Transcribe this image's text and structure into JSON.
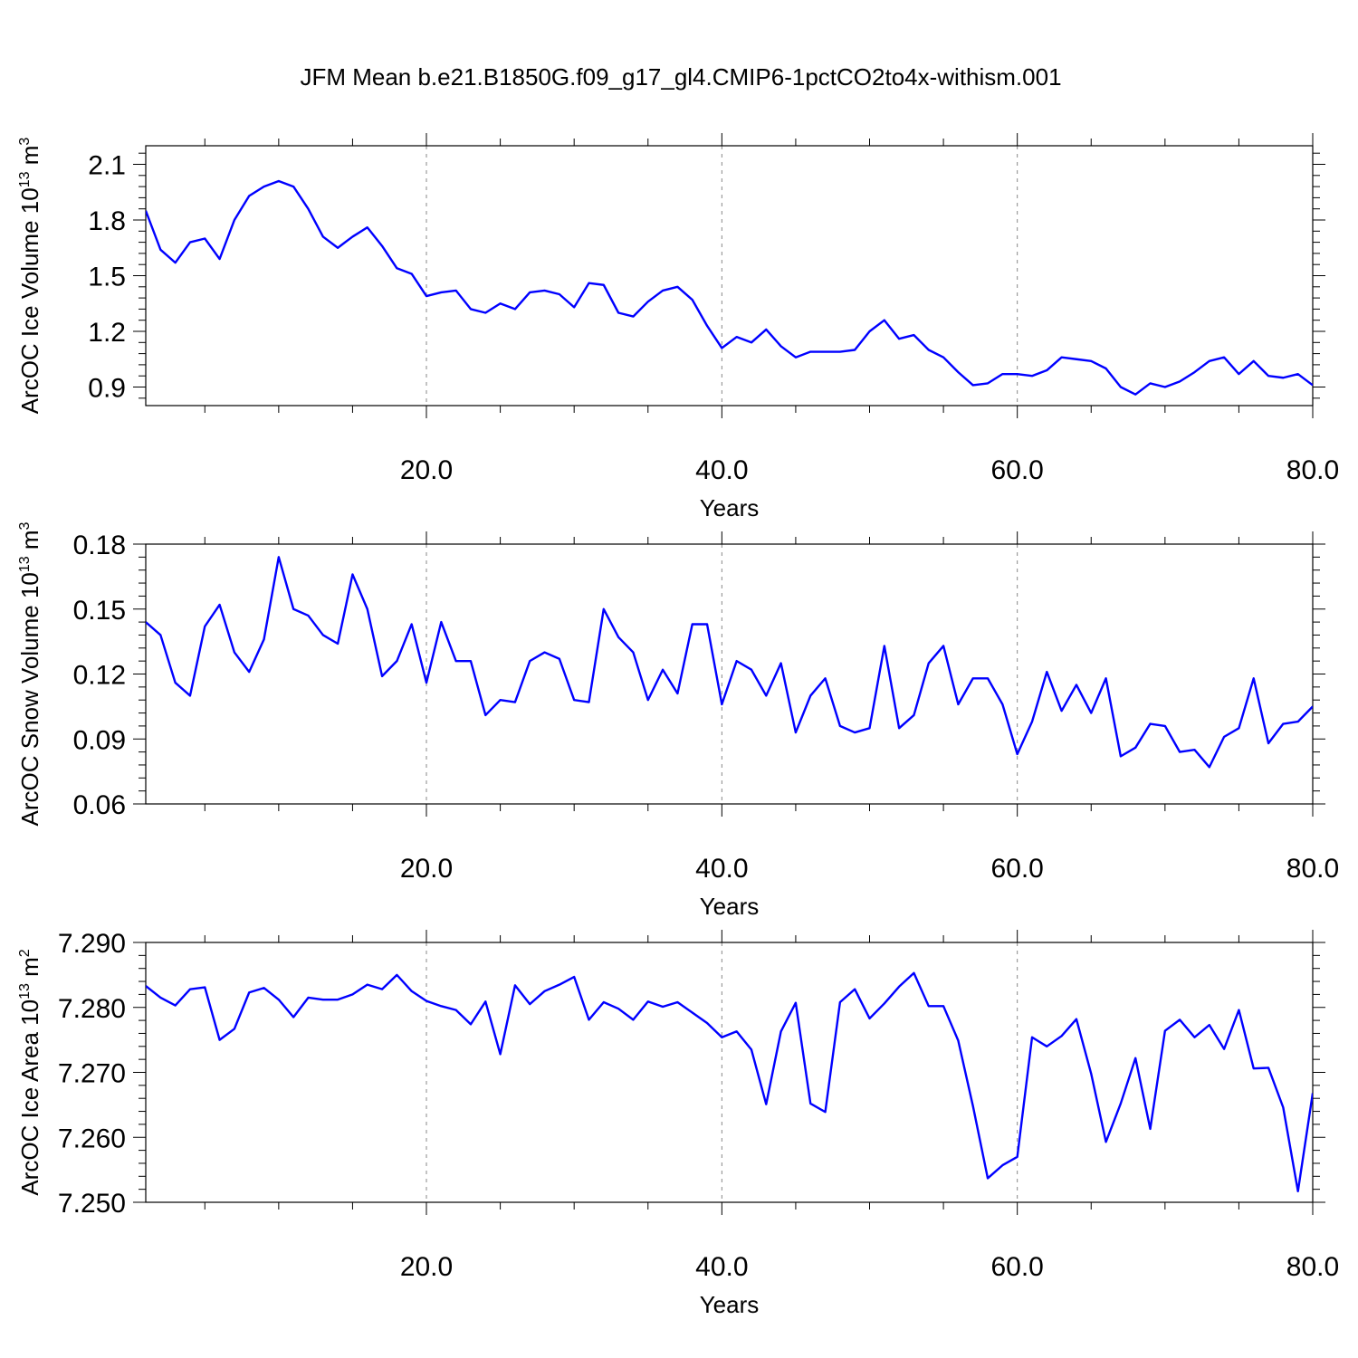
{
  "title": "JFM Mean b.e21.B1850G.f09_g17_gl4.CMIP6-1pctCO2to4x-withism.001",
  "colors": {
    "line": "#0000ff",
    "grid": "#888888",
    "axis": "#000000"
  },
  "chart_data": [
    {
      "type": "line",
      "xlabel": "Years",
      "ylabel": "ArcOC Ice Volume 10",
      "ylabel_sup": "13",
      "ylabel_unit": " m",
      "ylabel_unit_sup": "3",
      "xlim": [
        1,
        80
      ],
      "ylim": [
        0.8,
        2.2
      ],
      "x_ticks": [
        "20.0",
        "40.0",
        "60.0",
        "80.0"
      ],
      "y_ticks": [
        "0.9",
        "1.2",
        "1.5",
        "1.8",
        "2.1"
      ],
      "grid": "vertical dashed at x ticks",
      "x_start": 1,
      "values": [
        1.85,
        1.64,
        1.57,
        1.68,
        1.7,
        1.59,
        1.8,
        1.93,
        1.98,
        2.01,
        1.98,
        1.86,
        1.71,
        1.65,
        1.71,
        1.76,
        1.66,
        1.54,
        1.51,
        1.39,
        1.41,
        1.42,
        1.32,
        1.3,
        1.35,
        1.32,
        1.41,
        1.42,
        1.4,
        1.33,
        1.46,
        1.45,
        1.3,
        1.28,
        1.36,
        1.42,
        1.44,
        1.37,
        1.23,
        1.11,
        1.17,
        1.14,
        1.21,
        1.12,
        1.06,
        1.09,
        1.09,
        1.09,
        1.1,
        1.2,
        1.26,
        1.16,
        1.18,
        1.1,
        1.06,
        0.98,
        0.91,
        0.92,
        0.97,
        0.97,
        0.96,
        0.99,
        1.06,
        1.05,
        1.04,
        1.0,
        0.9,
        0.86,
        0.92,
        0.9,
        0.93,
        0.98,
        1.04,
        1.06,
        0.97,
        1.04,
        0.96,
        0.95,
        0.97,
        0.91
      ]
    },
    {
      "type": "line",
      "xlabel": "Years",
      "ylabel": "ArcOC Snow Volume 10",
      "ylabel_sup": "13",
      "ylabel_unit": " m",
      "ylabel_unit_sup": "3",
      "xlim": [
        1,
        80
      ],
      "ylim": [
        0.06,
        0.18
      ],
      "x_ticks": [
        "20.0",
        "40.0",
        "60.0",
        "80.0"
      ],
      "y_ticks": [
        "0.06",
        "0.09",
        "0.12",
        "0.15",
        "0.18"
      ],
      "grid": "vertical dashed at x ticks",
      "x_start": 1,
      "values": [
        0.144,
        0.138,
        0.116,
        0.11,
        0.142,
        0.152,
        0.13,
        0.121,
        0.136,
        0.174,
        0.15,
        0.147,
        0.138,
        0.134,
        0.166,
        0.15,
        0.119,
        0.126,
        0.143,
        0.116,
        0.144,
        0.126,
        0.126,
        0.101,
        0.108,
        0.107,
        0.126,
        0.13,
        0.127,
        0.108,
        0.107,
        0.15,
        0.137,
        0.13,
        0.108,
        0.122,
        0.111,
        0.143,
        0.143,
        0.106,
        0.126,
        0.122,
        0.11,
        0.125,
        0.093,
        0.11,
        0.118,
        0.096,
        0.093,
        0.095,
        0.133,
        0.095,
        0.101,
        0.125,
        0.133,
        0.106,
        0.118,
        0.118,
        0.106,
        0.083,
        0.098,
        0.121,
        0.103,
        0.115,
        0.102,
        0.118,
        0.082,
        0.086,
        0.097,
        0.096,
        0.084,
        0.085,
        0.077,
        0.091,
        0.095,
        0.118,
        0.088,
        0.097,
        0.098,
        0.105
      ]
    },
    {
      "type": "line",
      "xlabel": "Years",
      "ylabel": "ArcOC Ice Area 10",
      "ylabel_sup": "13",
      "ylabel_unit": " m",
      "ylabel_unit_sup": "2",
      "xlim": [
        1,
        80
      ],
      "ylim": [
        7.25,
        7.29
      ],
      "x_ticks": [
        "20.0",
        "40.0",
        "60.0",
        "80.0"
      ],
      "y_ticks": [
        "7.250",
        "7.260",
        "7.270",
        "7.280",
        "7.290"
      ],
      "grid": "vertical dashed at x ticks",
      "x_start": 1,
      "values": [
        7.2833,
        7.2815,
        7.2803,
        7.2828,
        7.2831,
        7.275,
        7.2767,
        7.2823,
        7.283,
        7.2812,
        7.2785,
        7.2815,
        7.2812,
        7.2812,
        7.282,
        7.2835,
        7.2828,
        7.285,
        7.2825,
        7.281,
        7.2802,
        7.2796,
        7.2774,
        7.2809,
        7.2728,
        7.2834,
        7.2805,
        7.2825,
        7.2835,
        7.2847,
        7.2781,
        7.2808,
        7.2798,
        7.2781,
        7.2809,
        7.2801,
        7.2808,
        7.2792,
        7.2776,
        7.2754,
        7.2763,
        7.2735,
        7.2651,
        7.2763,
        7.2807,
        7.2652,
        7.2639,
        7.2808,
        7.2828,
        7.2783,
        7.2806,
        7.2832,
        7.2853,
        7.2802,
        7.2802,
        7.2749,
        7.2648,
        7.2537,
        7.2557,
        7.257,
        7.2754,
        7.274,
        7.2756,
        7.2782,
        7.2698,
        7.2593,
        7.2652,
        7.2722,
        7.2613,
        7.2764,
        7.2781,
        7.2754,
        7.2773,
        7.2736,
        7.2796,
        7.2706,
        7.2707,
        7.2646,
        7.2517,
        7.2668
      ]
    }
  ]
}
